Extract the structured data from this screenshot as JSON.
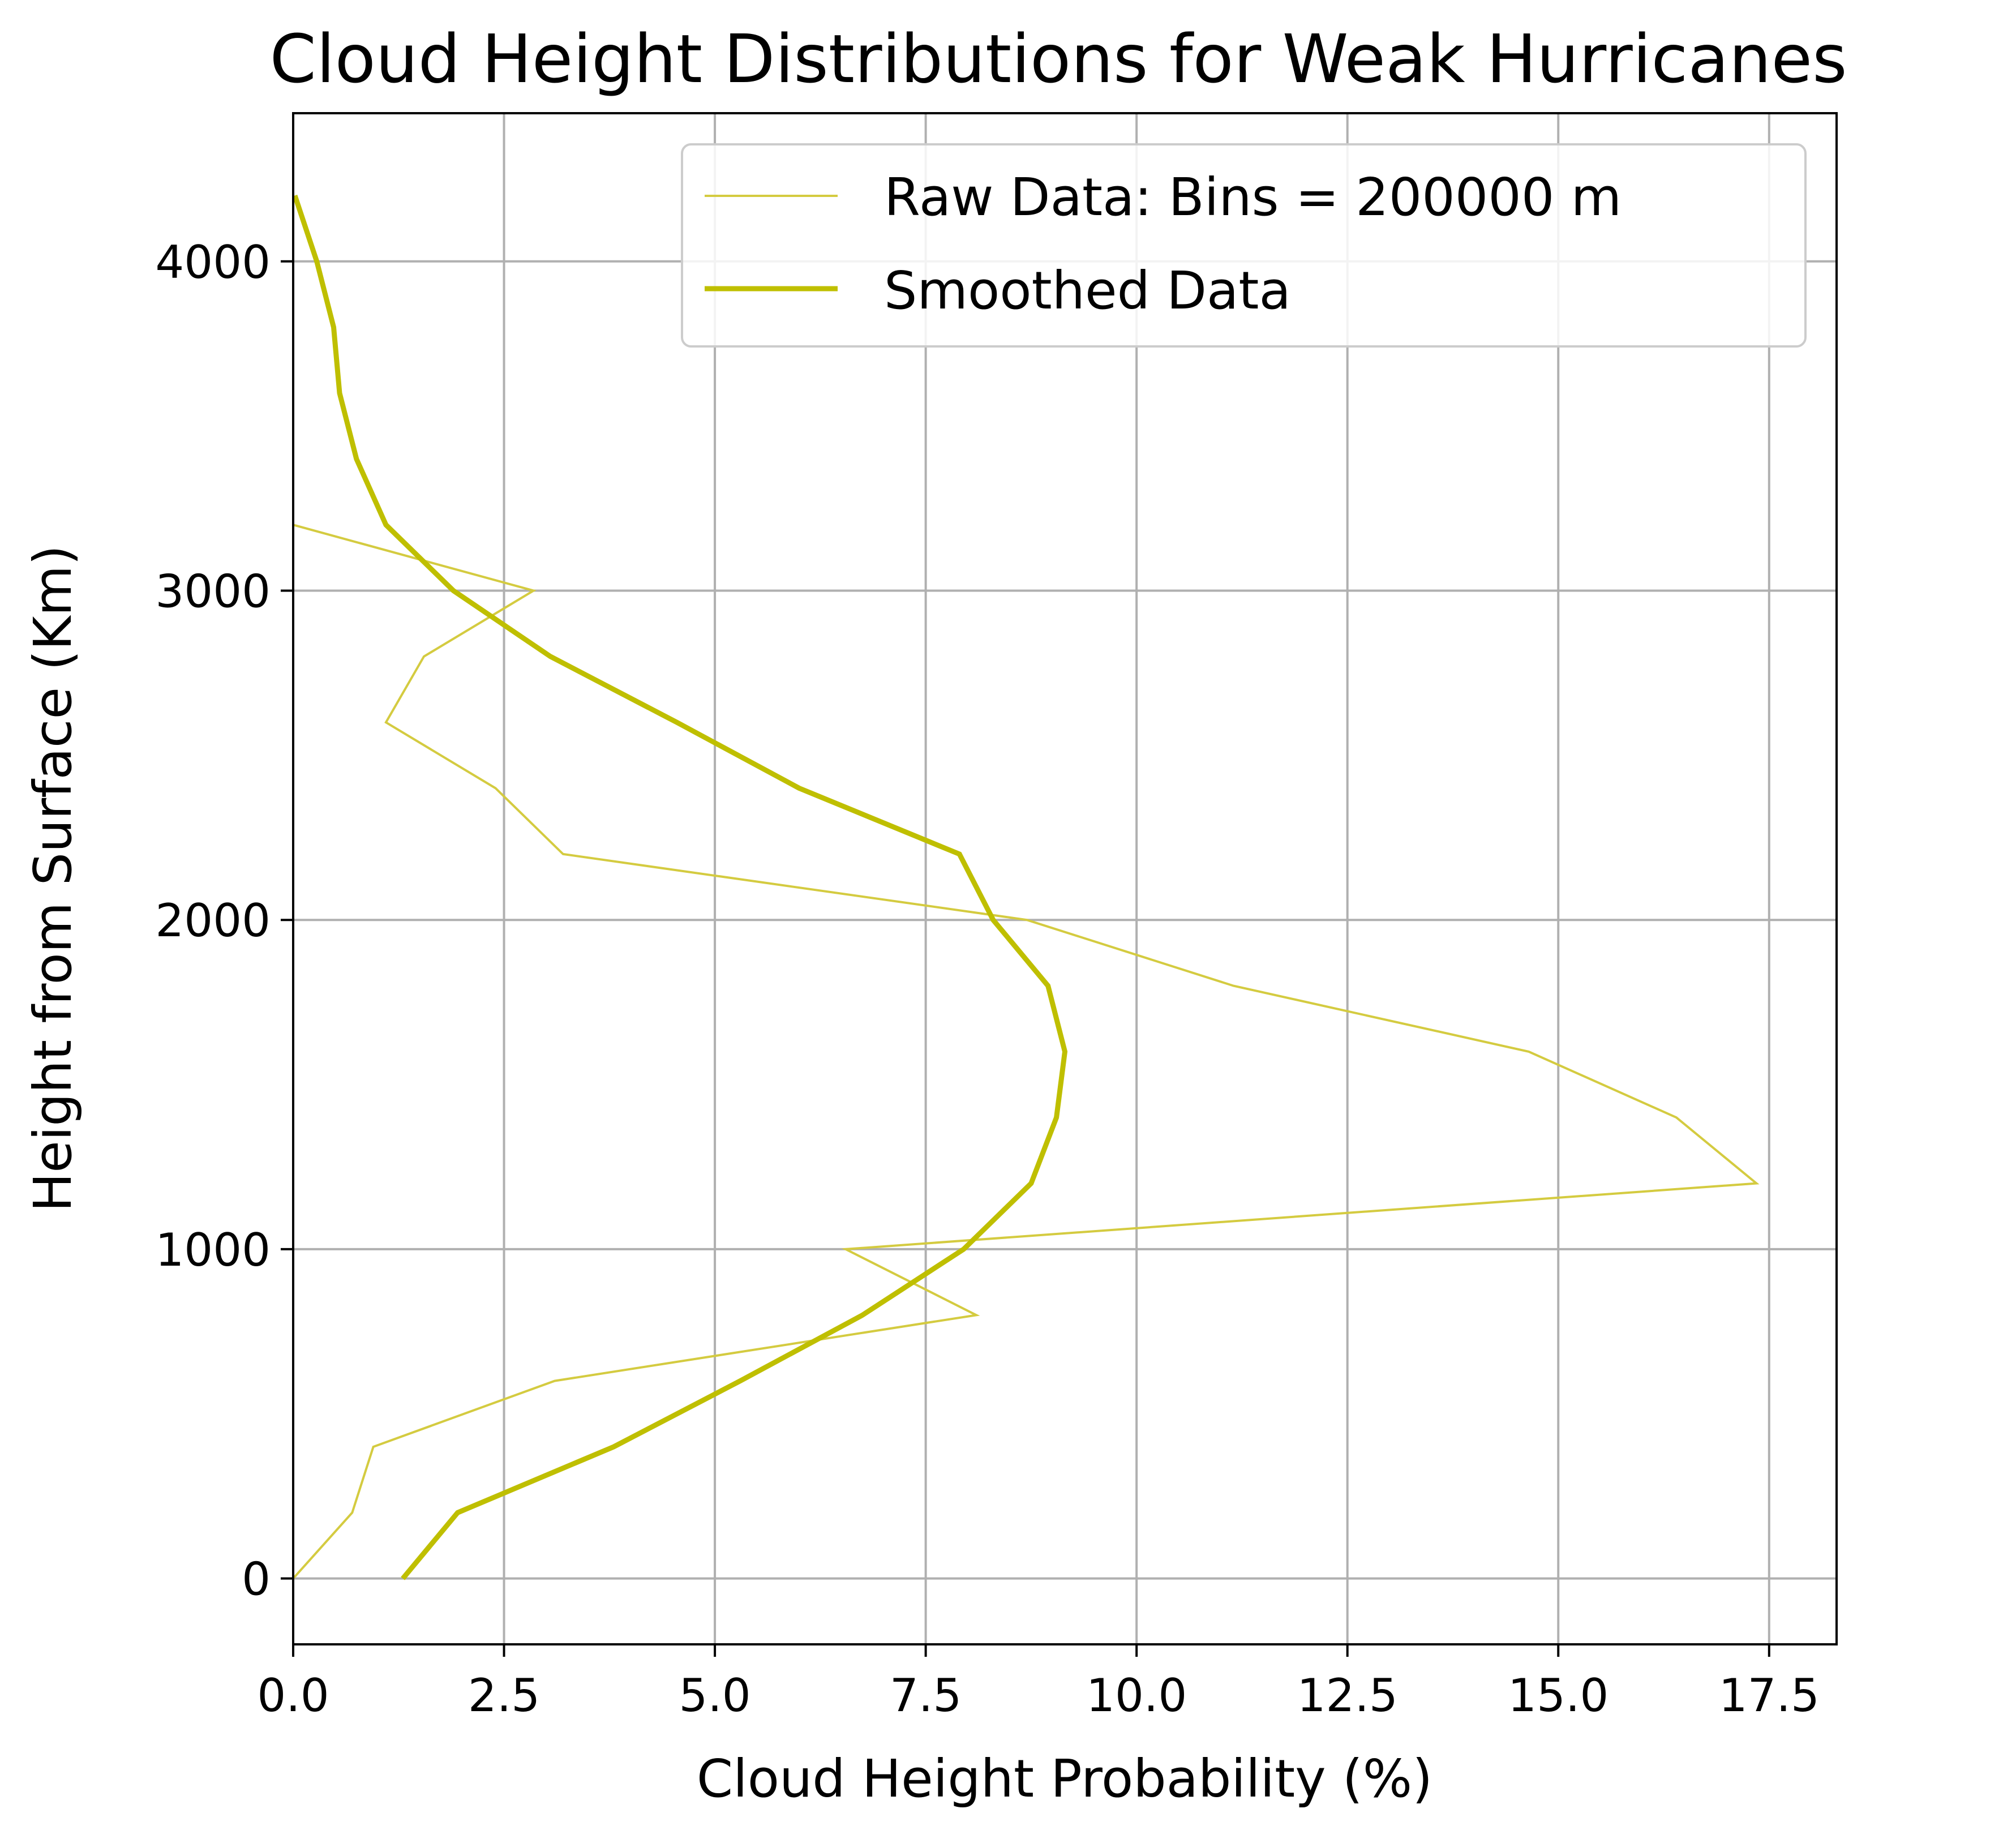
{
  "chart_data": {
    "type": "line",
    "title": "Cloud Height Distributions for Weak Hurricanes",
    "xlabel": "Cloud Height Probability (%)",
    "ylabel": "Height from Surface (Km)",
    "xlim": [
      0,
      18.3
    ],
    "ylim": [
      -200,
      4450
    ],
    "x_ticks": [
      "0.0",
      "2.5",
      "5.0",
      "7.5",
      "10.0",
      "12.5",
      "15.0",
      "17.5"
    ],
    "y_ticks": [
      "0",
      "1000",
      "2000",
      "3000",
      "4000"
    ],
    "grid": true,
    "legend_position": "top-right",
    "series": [
      {
        "name": "Raw Data: Bins = 200000 m",
        "color": "#d4cb40",
        "points": [
          [
            0.0,
            0
          ],
          [
            0.7,
            200
          ],
          [
            0.95,
            400
          ],
          [
            3.1,
            600
          ],
          [
            8.1,
            800
          ],
          [
            6.55,
            1000
          ],
          [
            17.35,
            1200
          ],
          [
            16.4,
            1400
          ],
          [
            14.65,
            1600
          ],
          [
            11.15,
            1800
          ],
          [
            8.7,
            2000
          ],
          [
            3.2,
            2200
          ],
          [
            2.4,
            2400
          ],
          [
            1.1,
            2600
          ],
          [
            1.55,
            2800
          ],
          [
            2.85,
            3000
          ],
          [
            0.0,
            3200
          ],
          [
            0.0,
            3400
          ],
          [
            0.0,
            3600
          ],
          [
            0.0,
            3800
          ],
          [
            0.0,
            4000
          ],
          [
            0.0,
            4200
          ],
          [
            0.0,
            4400
          ]
        ]
      },
      {
        "name": "Smoothed Data",
        "color": "#bfbf00",
        "points": [
          [
            1.3,
            0
          ],
          [
            1.95,
            200
          ],
          [
            3.8,
            400
          ],
          [
            5.3,
            600
          ],
          [
            6.75,
            800
          ],
          [
            7.95,
            1000
          ],
          [
            8.75,
            1200
          ],
          [
            9.05,
            1400
          ],
          [
            9.15,
            1600
          ],
          [
            8.95,
            1800
          ],
          [
            8.3,
            2000
          ],
          [
            7.9,
            2200
          ],
          [
            6.0,
            2400
          ],
          [
            4.55,
            2600
          ],
          [
            3.05,
            2800
          ],
          [
            1.9,
            3000
          ],
          [
            1.1,
            3200
          ],
          [
            0.75,
            3400
          ],
          [
            0.55,
            3600
          ],
          [
            0.48,
            3800
          ],
          [
            0.28,
            4000
          ],
          [
            0.02,
            4200
          ]
        ]
      }
    ]
  }
}
